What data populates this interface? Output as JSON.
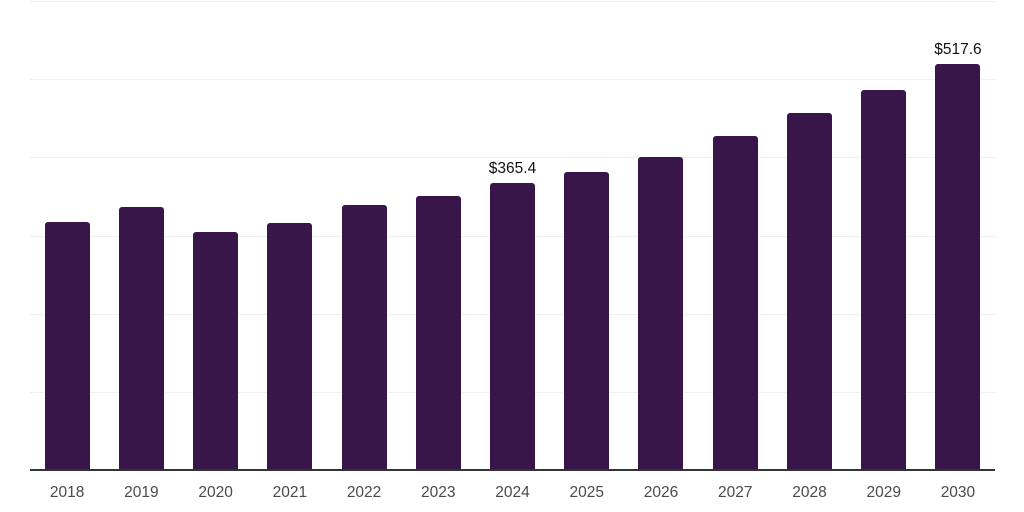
{
  "chart_data": {
    "type": "bar",
    "title": "",
    "xlabel": "",
    "ylabel": "",
    "categories": [
      "2018",
      "2019",
      "2020",
      "2021",
      "2022",
      "2023",
      "2024",
      "2025",
      "2026",
      "2027",
      "2028",
      "2029",
      "2030"
    ],
    "values": [
      316.4,
      335.6,
      303.7,
      315.2,
      337.3,
      349.1,
      365.4,
      380.2,
      399.8,
      426.6,
      455.0,
      484.8,
      517.6
    ],
    "value_labels": [
      "",
      "",
      "",
      "",
      "",
      "",
      "$365.4",
      "",
      "",
      "",
      "",
      "",
      "$517.6"
    ],
    "ylim": [
      0,
      600
    ],
    "gridline_values": [
      100,
      200,
      300,
      400,
      500,
      600
    ],
    "grid": true,
    "legend_position": "none",
    "y_tick_labels_visible": false
  },
  "style": {
    "bar_color": "#38164A",
    "gridline_color": "#F0F0F2",
    "axis_line_color": "#333333",
    "tick_label_color": "#4A4A4A",
    "data_label_color": "#121212",
    "background_color": "#FFFFFF"
  }
}
